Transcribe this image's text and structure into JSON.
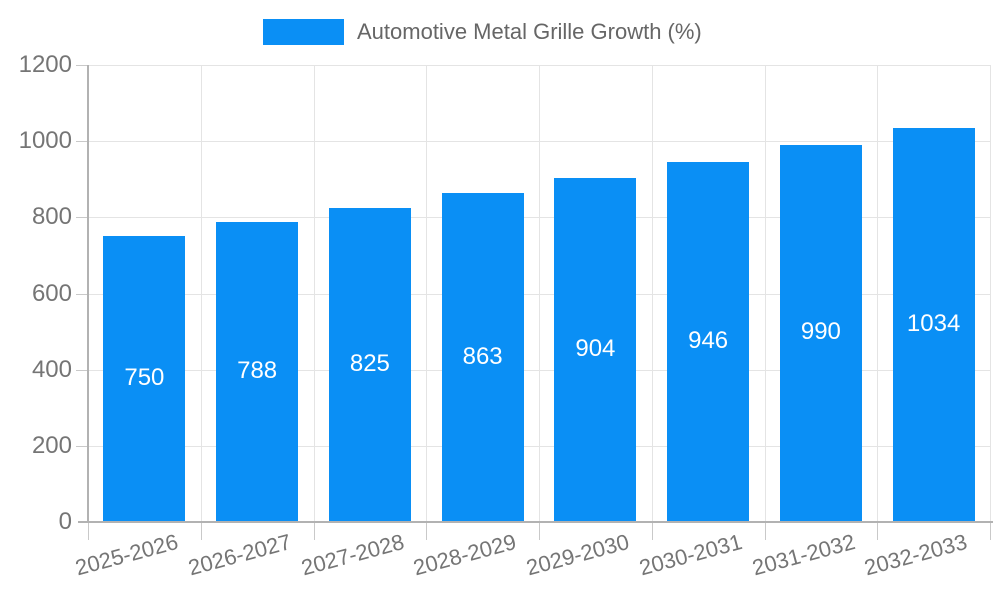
{
  "chart_data": {
    "type": "bar",
    "title": "Automotive Metal Grille Growth (%)",
    "categories": [
      "2025-2026",
      "2026-2027",
      "2027-2028",
      "2028-2029",
      "2029-2030",
      "2030-2031",
      "2031-2032",
      "2032-2033"
    ],
    "values": [
      750,
      788,
      825,
      863,
      904,
      946,
      990,
      1034
    ],
    "xlabel": "",
    "ylabel": "",
    "ylim": [
      0,
      1200
    ],
    "yticks": [
      0,
      200,
      400,
      600,
      800,
      1000,
      1200
    ],
    "legend_position": "top",
    "grid": true,
    "value_labels": "inside-bar-centered",
    "colors": {
      "bar": "#0a8ff5",
      "grid_line": "#e4e4e4",
      "axis_line": "#b2b2b2",
      "tick_stub": "#c9c9c9",
      "tick_text": "#757575",
      "legend_text": "#666666",
      "value_text": "#ffffff",
      "background": "#ffffff"
    }
  }
}
